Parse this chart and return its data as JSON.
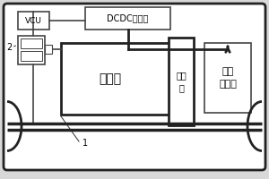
{
  "bg_color": "#d8d8d8",
  "box_fill": "#ffffff",
  "line_color": "#444444",
  "thick_color": "#222222",
  "labels": {
    "vcu": "VCU",
    "dcdc": "DCDC转换器",
    "motor": "电动机",
    "reducer": "减速\n器",
    "battery": "低压\n蓄电池",
    "label1": "1",
    "label2": "2"
  }
}
